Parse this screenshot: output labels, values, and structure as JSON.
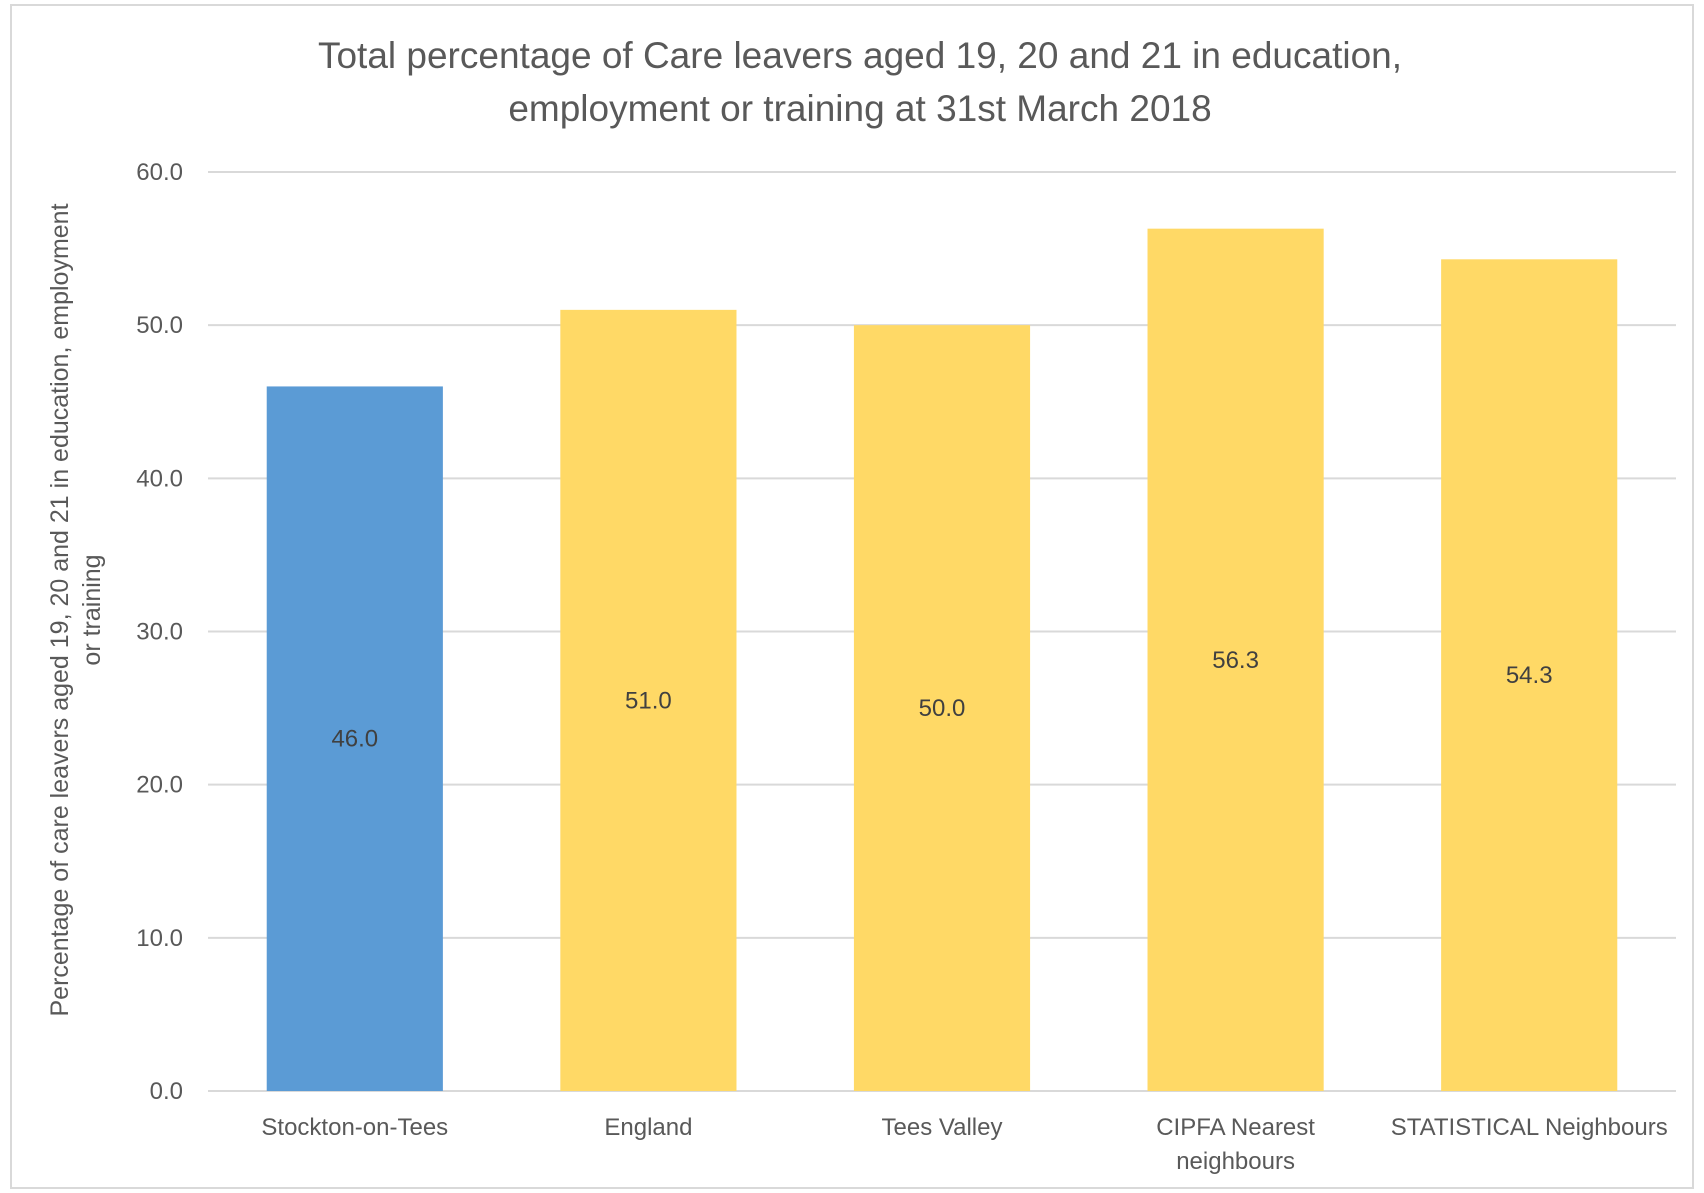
{
  "chart_data": {
    "type": "bar",
    "title_lines": [
      "Total percentage of Care leavers aged 19, 20 and 21 in education,",
      "employment or training at 31st March 2018"
    ],
    "xlabel": "",
    "ylabel_lines": [
      "Percentage of care leavers aged 19, 20 and 21 in education, employment",
      "or training"
    ],
    "categories": [
      [
        "Stockton-on-Tees"
      ],
      [
        "England"
      ],
      [
        "Tees Valley"
      ],
      [
        "CIPFA Nearest",
        "neighbours"
      ],
      [
        "STATISTICAL Neighbours"
      ]
    ],
    "values": [
      46.0,
      51.0,
      50.0,
      56.3,
      54.3
    ],
    "data_labels": [
      "46.0",
      "51.0",
      "50.0",
      "56.3",
      "54.3"
    ],
    "bar_colors": [
      "#5b9bd5",
      "#ffd966",
      "#ffd966",
      "#ffd966",
      "#ffd966"
    ],
    "ylim": [
      0,
      60
    ],
    "yticks": [
      "0.0",
      "10.0",
      "20.0",
      "30.0",
      "40.0",
      "50.0",
      "60.0"
    ],
    "grid": true,
    "gridline_color": "#d9d9d9",
    "legend": "none"
  }
}
